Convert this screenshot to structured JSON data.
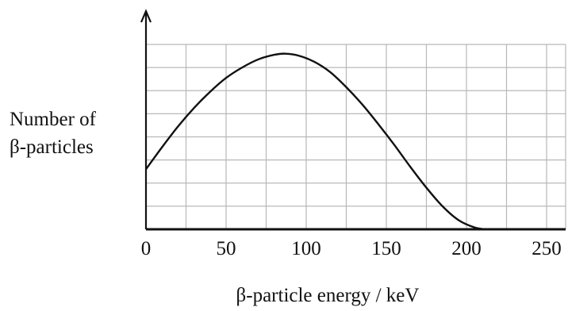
{
  "chart_data": {
    "type": "line",
    "title": "",
    "xlabel": "β-particle energy / keV",
    "ylabel_lines": [
      "Number of",
      "β-particles"
    ],
    "xlim": [
      0,
      250
    ],
    "ylim": [
      0,
      8
    ],
    "grid": true,
    "y_ticks_labeled": false,
    "x_ticks": [
      0,
      50,
      100,
      150,
      200,
      250
    ],
    "x_tick_labels": [
      "0",
      "50",
      "100",
      "150",
      "200",
      "250"
    ],
    "series": [
      {
        "x": [
          0,
          10,
          20,
          30,
          40,
          50,
          60,
          70,
          80,
          87,
          95,
          105,
          115,
          125,
          135,
          145,
          155,
          165,
          175,
          185,
          195,
          205,
          212,
          218
        ],
        "y": [
          2.6,
          3.55,
          4.45,
          5.25,
          5.95,
          6.55,
          7.0,
          7.35,
          7.55,
          7.6,
          7.52,
          7.25,
          6.8,
          6.15,
          5.4,
          4.55,
          3.65,
          2.7,
          1.8,
          1.0,
          0.4,
          0.08,
          0.0,
          0.0
        ]
      }
    ],
    "colors": {
      "curve": "#111111",
      "grid": "#b8b8b8",
      "axis": "#111111"
    }
  }
}
